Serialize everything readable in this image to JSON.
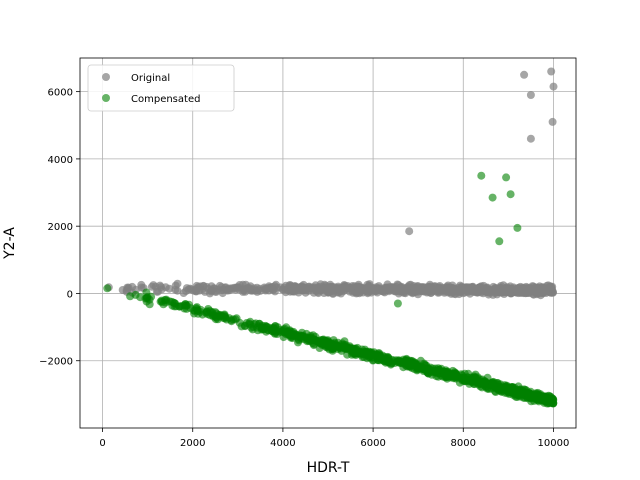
{
  "chart_data": {
    "type": "scatter",
    "xlabel": "HDR-T",
    "ylabel": "Y2-A",
    "xlim": [
      -500,
      10500
    ],
    "ylim": [
      -4000,
      7000
    ],
    "xticks": [
      0,
      2000,
      4000,
      6000,
      8000,
      10000
    ],
    "yticks": [
      -2000,
      0,
      2000,
      4000,
      6000
    ],
    "ytick_labels": [
      "−2000",
      "0",
      "2000",
      "4000",
      "6000"
    ],
    "grid": true,
    "legend_position": "top-left",
    "series": [
      {
        "name": "Original",
        "color": "#808080",
        "band": {
          "x_start": 0,
          "x_end": 10000,
          "y_start": 150,
          "y_end": 100,
          "spread": 60,
          "count": 900,
          "density": "increasing"
        },
        "points": [
          [
            6800,
            1850
          ],
          [
            9350,
            6500
          ],
          [
            9500,
            5900
          ],
          [
            9950,
            6600
          ],
          [
            10000,
            6150
          ],
          [
            9980,
            5100
          ],
          [
            9500,
            4600
          ]
        ]
      },
      {
        "name": "Compensated",
        "color": "#008000",
        "band": {
          "x_start": 0,
          "x_end": 10000,
          "y_start": 200,
          "y_end": -3200,
          "spread": 70,
          "count": 900,
          "density": "increasing"
        },
        "points": [
          [
            8400,
            3500
          ],
          [
            8650,
            2850
          ],
          [
            8950,
            3450
          ],
          [
            9050,
            2950
          ],
          [
            9200,
            1950
          ],
          [
            8800,
            1550
          ],
          [
            6550,
            -300
          ]
        ]
      }
    ]
  }
}
